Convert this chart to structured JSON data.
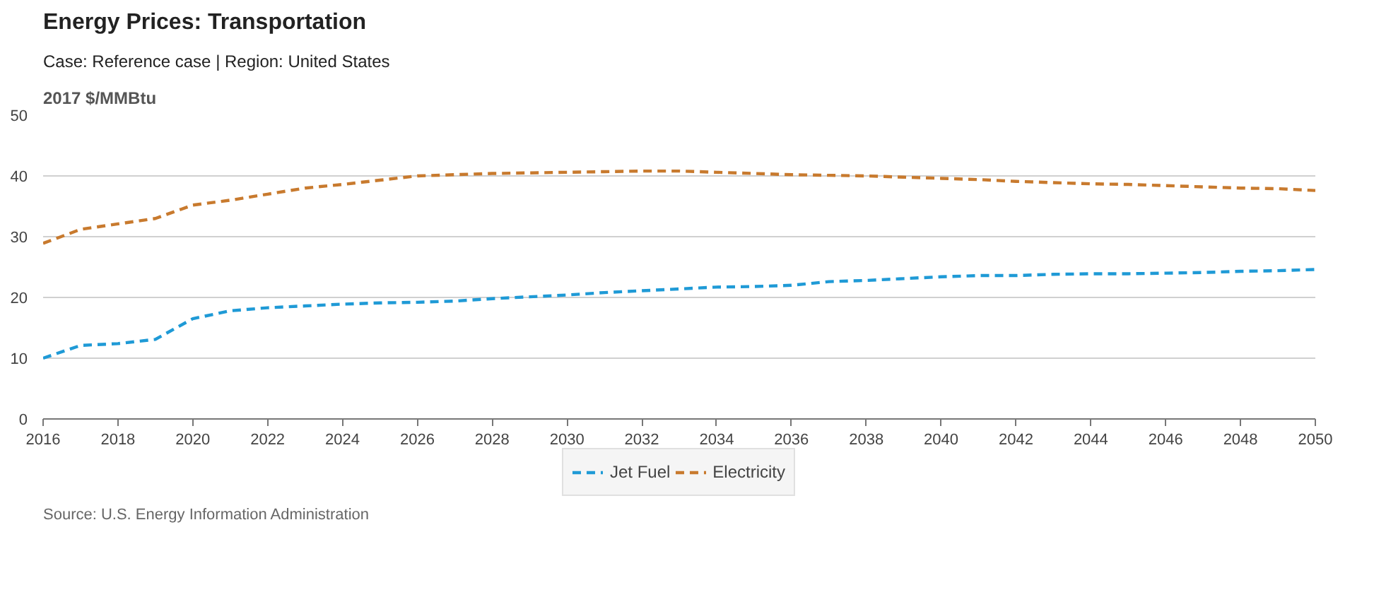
{
  "chart_data": {
    "type": "line",
    "title": "Energy Prices: Transportation",
    "subtitle": "Case: Reference case | Region: United States",
    "ylabel": "2017 $/MMBtu",
    "annotations": [
      "Source: U.S. Energy Information Administration"
    ],
    "x": [
      2016,
      2017,
      2018,
      2019,
      2020,
      2021,
      2022,
      2023,
      2024,
      2025,
      2026,
      2027,
      2028,
      2029,
      2030,
      2031,
      2032,
      2033,
      2034,
      2035,
      2036,
      2037,
      2038,
      2039,
      2040,
      2041,
      2042,
      2043,
      2044,
      2045,
      2046,
      2047,
      2048,
      2049,
      2050
    ],
    "series": [
      {
        "name": "Jet Fuel",
        "color": "#1f9ad6",
        "values": [
          10.0,
          12.1,
          12.4,
          13.1,
          16.5,
          17.8,
          18.3,
          18.6,
          18.9,
          19.1,
          19.2,
          19.4,
          19.8,
          20.1,
          20.4,
          20.8,
          21.1,
          21.4,
          21.7,
          21.8,
          22.0,
          22.6,
          22.8,
          23.1,
          23.4,
          23.6,
          23.6,
          23.8,
          23.9,
          23.9,
          24.0,
          24.1,
          24.3,
          24.4,
          24.6
        ]
      },
      {
        "name": "Electricity",
        "color": "#c87a2e",
        "values": [
          28.9,
          31.2,
          32.1,
          33.0,
          35.2,
          36.0,
          37.0,
          38.0,
          38.6,
          39.3,
          40.0,
          40.2,
          40.4,
          40.5,
          40.6,
          40.7,
          40.8,
          40.8,
          40.6,
          40.4,
          40.2,
          40.1,
          40.0,
          39.8,
          39.6,
          39.4,
          39.1,
          38.9,
          38.7,
          38.6,
          38.4,
          38.2,
          38.0,
          37.9,
          37.6
        ]
      }
    ],
    "xlim": [
      2016,
      2050
    ],
    "xticks": [
      2016,
      2018,
      2020,
      2022,
      2024,
      2026,
      2028,
      2030,
      2032,
      2034,
      2036,
      2038,
      2040,
      2042,
      2044,
      2046,
      2048,
      2050
    ],
    "ylim": [
      0,
      50
    ],
    "yticks": [
      0,
      10,
      20,
      30,
      40,
      50
    ],
    "grid": "y",
    "legend": "bottom",
    "line_style": "dashed"
  }
}
